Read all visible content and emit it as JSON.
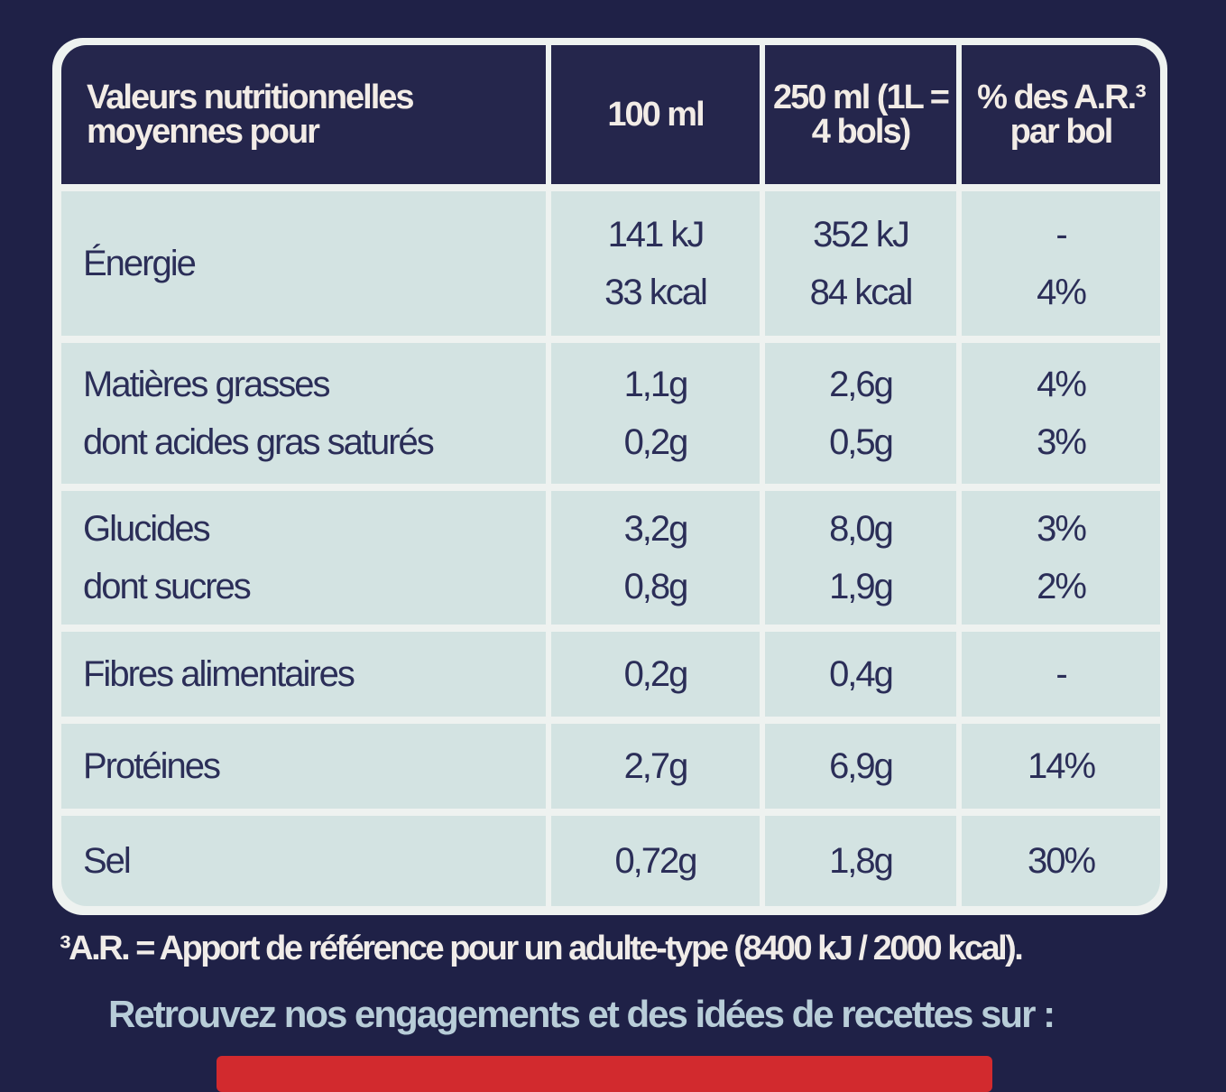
{
  "header": {
    "label": "Valeurs nutritionnelles moyennes pour",
    "col1": "100 ml",
    "col2": "250 ml (1L = 4 bols)",
    "col3": "% des A.R.³ par bol"
  },
  "rows": [
    {
      "name": "Énergie",
      "sub": "",
      "v100": [
        "141 kJ",
        "33 kcal"
      ],
      "v250": [
        "352 kJ",
        "84 kcal"
      ],
      "ar": [
        "-",
        "4%"
      ]
    },
    {
      "name": "Matières grasses",
      "sub": "dont acides gras saturés",
      "v100": [
        "1,1g",
        "0,2g"
      ],
      "v250": [
        "2,6g",
        "0,5g"
      ],
      "ar": [
        "4%",
        "3%"
      ]
    },
    {
      "name": "Glucides",
      "sub": "dont sucres",
      "v100": [
        "3,2g",
        "0,8g"
      ],
      "v250": [
        "8,0g",
        "1,9g"
      ],
      "ar": [
        "3%",
        "2%"
      ]
    },
    {
      "name": "Fibres alimentaires",
      "v100": [
        "0,2g"
      ],
      "v250": [
        "0,4g"
      ],
      "ar": [
        "-"
      ]
    },
    {
      "name": "Protéines",
      "v100": [
        "2,7g"
      ],
      "v250": [
        "6,9g"
      ],
      "ar": [
        "14%"
      ]
    },
    {
      "name": "Sel",
      "v100": [
        "0,72g"
      ],
      "v250": [
        "1,8g"
      ],
      "ar": [
        "30%"
      ]
    }
  ],
  "footnote": "³A.R. = Apport de référence pour un adulte-type (8400 kJ / 2000 kcal).",
  "cta": "Retrouvez nos engagements et des idées de recettes sur :",
  "colors": {
    "navy": "#1f2147",
    "cell": "#d3e3e2",
    "text": "#2b2e58",
    "red": "#d22a2e"
  }
}
